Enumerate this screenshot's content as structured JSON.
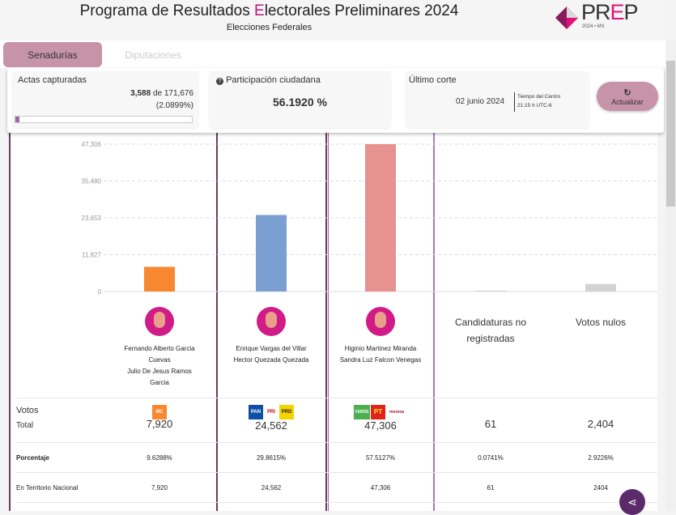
{
  "header": {
    "title_pre": "Programa de Resultados ",
    "title_e": "E",
    "title_post": "lectorales Preliminares 2024",
    "subtitle": "Elecciones Federales",
    "logo_text": "PREP",
    "logo_sub": "2024 • MX"
  },
  "tabs": [
    {
      "label": "Senadurías",
      "active": true
    },
    {
      "label": "Diputaciones",
      "active": false
    }
  ],
  "actas": {
    "label": "Actas capturadas",
    "captured": "3,588",
    "of": " de 171,676",
    "percent": "(2.0899%)",
    "progress": 2.0899
  },
  "participacion": {
    "label": "Participación ciudadana",
    "value": "56.1920 %",
    "icon": "info-icon"
  },
  "corte": {
    "label": "Último corte",
    "date": "02 junio 2024",
    "tz1": "Tiempo del Centro",
    "tz2": "21:15 h UTC-6"
  },
  "update": {
    "label": "Actualizar",
    "icon": "refresh-icon"
  },
  "chart_data": {
    "type": "bar",
    "categories": [
      "Fernando Alberto Garcia Cuevas / Julio De Jesus Ramos Garcia",
      "Enrique Vargas del Villar / Hector Quezada Quezada",
      "Higinio Martinez Miranda / Sandra Luz Falcon Venegas",
      "Candidaturas no registradas",
      "Votos nulos"
    ],
    "values": [
      7920,
      24562,
      47306,
      61,
      2404
    ],
    "colors": [
      "#f7882f",
      "#7a9fd0",
      "#e8928f",
      "#d3d3d3",
      "#d3d3d3"
    ],
    "ylim": [
      0,
      47306
    ],
    "yticks": [
      "0",
      "11,827",
      "23,653",
      "35,480",
      "47,306"
    ],
    "grid": true
  },
  "candidates": [
    {
      "lines": [
        "Fernando Alberto Garcia",
        "Cuevas",
        "Julio De Jesus Ramos",
        "Garcia"
      ],
      "parties": [
        "MC"
      ],
      "total": "7,920",
      "pct": "9.6288%",
      "nacional": "7,920"
    },
    {
      "lines": [
        "Enrique Vargas del Villar",
        "Hector Quezada Quezada"
      ],
      "parties": [
        "PAN",
        "PRI",
        "PRD"
      ],
      "total": "24,562",
      "pct": "29.8615%",
      "nacional": "24,562"
    },
    {
      "lines": [
        "Higinio Martinez Miranda",
        "Sandra Luz Falcon Venegas"
      ],
      "parties": [
        "VERDE",
        "PT",
        "morena"
      ],
      "total": "47,306",
      "pct": "57.5127%",
      "nacional": "47,306"
    },
    {
      "lines": [
        "Candidaturas no",
        "registradas"
      ],
      "parties": [],
      "total": "61",
      "pct": "0.0741%",
      "nacional": "61"
    },
    {
      "lines": [
        "Votos nulos"
      ],
      "parties": [],
      "total": "2,404",
      "pct": "2.9226%",
      "nacional": "2404"
    }
  ],
  "rows": {
    "votos": "Votos",
    "total": "Total",
    "porcentaje": "Porcentaje",
    "nacional": "En Territorio Nacional"
  }
}
